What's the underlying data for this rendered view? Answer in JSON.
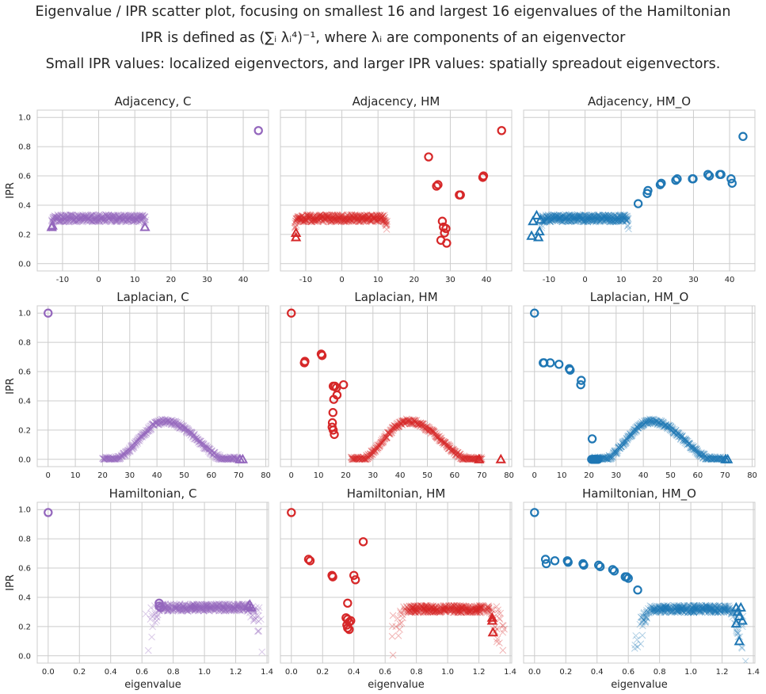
{
  "title_lines": [
    "Eigenvalue / IPR scatter plot, focusing on smallest 16 and largest 16 eigenvalues of the Hamiltonian",
    "IPR is defined as (∑ᵢ λᵢ⁴)⁻¹, where λᵢ are components of an eigenvector",
    "Small IPR values: localized eigenvectors, and larger IPR values: spatially spreadout eigenvectors."
  ],
  "colors": {
    "C": "#9467bd",
    "HM": "#d62728",
    "HM_O": "#1f77b4",
    "grid": "#cccccc",
    "frame": "#cccccc",
    "text": "#262626"
  },
  "chart_data": [
    {
      "id": "adjacency-c",
      "type": "scatter",
      "title": "Adjacency, C",
      "row": "adjacency",
      "color_key": "C",
      "ylabel": "IPR",
      "xlabel": "",
      "xlim": [
        -17,
        47
      ],
      "ylim": [
        -0.05,
        1.05
      ],
      "xticks": [
        -10,
        0,
        10,
        20,
        30,
        40
      ],
      "yticks": [
        0.0,
        0.2,
        0.4,
        0.6,
        0.8,
        1.0
      ],
      "band": {
        "shape": "flat",
        "x": [
          -13,
          13
        ],
        "y": 0.31
      },
      "circles": [
        [
          44.2,
          0.91
        ]
      ],
      "triangles": [
        [
          -13.0,
          0.25
        ],
        [
          -12.8,
          0.26
        ],
        [
          12.8,
          0.25
        ]
      ]
    },
    {
      "id": "adjacency-hm",
      "type": "scatter",
      "title": "Adjacency, HM",
      "row": "adjacency",
      "color_key": "HM",
      "ylabel": "",
      "xlabel": "",
      "xlim": [
        -17,
        47
      ],
      "ylim": [
        -0.05,
        1.05
      ],
      "xticks": [
        -10,
        0,
        10,
        20,
        30,
        40
      ],
      "yticks": [
        0.0,
        0.2,
        0.4,
        0.6,
        0.8,
        1.0
      ],
      "band": {
        "shape": "flat",
        "x": [
          -13,
          12.5
        ],
        "y": 0.31
      },
      "circles": [
        [
          24.0,
          0.73
        ],
        [
          26.2,
          0.53
        ],
        [
          26.6,
          0.54
        ],
        [
          32.5,
          0.47
        ],
        [
          32.8,
          0.47
        ],
        [
          39.0,
          0.59
        ],
        [
          39.2,
          0.6
        ],
        [
          44.2,
          0.91
        ],
        [
          27.8,
          0.29
        ],
        [
          28.1,
          0.25
        ],
        [
          28.4,
          0.21
        ],
        [
          28.8,
          0.24
        ],
        [
          27.4,
          0.16
        ],
        [
          29.0,
          0.14
        ]
      ],
      "triangles": [
        [
          -12.7,
          0.18
        ],
        [
          -12.7,
          0.21
        ]
      ]
    },
    {
      "id": "adjacency-hm-o",
      "type": "scatter",
      "title": "Adjacency, HM_O",
      "row": "adjacency",
      "color_key": "HM_O",
      "ylabel": "",
      "xlabel": "",
      "xlim": [
        -17,
        47
      ],
      "ylim": [
        -0.05,
        1.05
      ],
      "xticks": [
        -10,
        0,
        10,
        20,
        30,
        40
      ],
      "yticks": [
        0.0,
        0.2,
        0.4,
        0.6,
        0.8,
        1.0
      ],
      "band": {
        "shape": "flat",
        "x": [
          -12,
          12
        ],
        "y": 0.31
      },
      "circles": [
        [
          14.7,
          0.41
        ],
        [
          17.2,
          0.48
        ],
        [
          17.4,
          0.5
        ],
        [
          20.8,
          0.54
        ],
        [
          21.1,
          0.55
        ],
        [
          25.1,
          0.57
        ],
        [
          25.5,
          0.58
        ],
        [
          29.7,
          0.58
        ],
        [
          29.9,
          0.58
        ],
        [
          34.0,
          0.61
        ],
        [
          34.4,
          0.6
        ],
        [
          37.3,
          0.61
        ],
        [
          37.6,
          0.61
        ],
        [
          40.4,
          0.58
        ],
        [
          40.7,
          0.55
        ],
        [
          43.7,
          0.87
        ]
      ],
      "triangles": [
        [
          -14.8,
          0.19
        ],
        [
          -14.4,
          0.29
        ],
        [
          -13.4,
          0.33
        ],
        [
          -12.9,
          0.18
        ],
        [
          -12.6,
          0.22
        ],
        [
          -12.3,
          0.3
        ]
      ]
    },
    {
      "id": "laplacian-c",
      "type": "scatter",
      "title": "Laplacian, C",
      "row": "laplacian",
      "color_key": "C",
      "ylabel": "IPR",
      "xlabel": "",
      "xlim": [
        -4,
        81
      ],
      "ylim": [
        -0.05,
        1.05
      ],
      "xticks": [
        0,
        10,
        20,
        30,
        40,
        50,
        60,
        70,
        80
      ],
      "yticks": [
        0.0,
        0.2,
        0.4,
        0.6,
        0.8,
        1.0
      ],
      "band": {
        "shape": "arch",
        "x": [
          20,
          70
        ],
        "ramp": [
          25,
          65
        ],
        "peak": 0.26,
        "peak_x": 43
      },
      "circles": [
        [
          0,
          1.0
        ]
      ],
      "triangles": [
        [
          70.5,
          0.0
        ],
        [
          71.5,
          0.0
        ]
      ]
    },
    {
      "id": "laplacian-hm",
      "type": "scatter",
      "title": "Laplacian, HM",
      "row": "laplacian",
      "color_key": "HM",
      "ylabel": "",
      "xlabel": "",
      "xlim": [
        -4,
        81
      ],
      "ylim": [
        -0.05,
        1.05
      ],
      "xticks": [
        0,
        10,
        20,
        30,
        40,
        50,
        60,
        70,
        80
      ],
      "yticks": [
        0.0,
        0.2,
        0.4,
        0.6,
        0.8,
        1.0
      ],
      "band": {
        "shape": "arch",
        "x": [
          22,
          70
        ],
        "ramp": [
          26,
          65
        ],
        "peak": 0.26,
        "peak_x": 43
      },
      "circles": [
        [
          0,
          1.0
        ],
        [
          4.8,
          0.66
        ],
        [
          5.0,
          0.67
        ],
        [
          11.0,
          0.72
        ],
        [
          11.3,
          0.71
        ],
        [
          15.4,
          0.5
        ],
        [
          16.0,
          0.5
        ],
        [
          16.6,
          0.49
        ],
        [
          16.8,
          0.44
        ],
        [
          15.6,
          0.41
        ],
        [
          19.2,
          0.51
        ],
        [
          15.3,
          0.32
        ],
        [
          15.1,
          0.25
        ],
        [
          15.0,
          0.22
        ],
        [
          15.4,
          0.2
        ],
        [
          15.8,
          0.17
        ]
      ],
      "triangles": [
        [
          69.0,
          0.0
        ],
        [
          77.0,
          0.0
        ]
      ]
    },
    {
      "id": "laplacian-hm-o",
      "type": "scatter",
      "title": "Laplacian, HM_O",
      "row": "laplacian",
      "color_key": "HM_O",
      "ylabel": "",
      "xlabel": "",
      "xlim": [
        -4,
        81
      ],
      "ylim": [
        -0.05,
        1.05
      ],
      "xticks": [
        0,
        10,
        20,
        30,
        40,
        50,
        60,
        70,
        80
      ],
      "yticks": [
        0.0,
        0.2,
        0.4,
        0.6,
        0.8,
        1.0
      ],
      "band": {
        "shape": "arch",
        "x": [
          22,
          70
        ],
        "ramp": [
          26,
          65
        ],
        "peak": 0.26,
        "peak_x": 43
      },
      "circles": [
        [
          0,
          1.0
        ],
        [
          3.2,
          0.66
        ],
        [
          3.5,
          0.66
        ],
        [
          5.8,
          0.66
        ],
        [
          9.0,
          0.65
        ],
        [
          12.8,
          0.62
        ],
        [
          13.1,
          0.61
        ],
        [
          17.2,
          0.54
        ],
        [
          17.0,
          0.51
        ],
        [
          21.2,
          0.14
        ],
        [
          21.0,
          0.0
        ],
        [
          21.6,
          0.0
        ],
        [
          22.1,
          0.0
        ],
        [
          22.5,
          0.0
        ],
        [
          23.0,
          0.0
        ],
        [
          23.4,
          0.0
        ]
      ],
      "triangles": [
        [
          70.2,
          0.0
        ],
        [
          71.0,
          0.0
        ]
      ]
    },
    {
      "id": "hamiltonian-c",
      "type": "scatter",
      "title": "Hamiltonian, C",
      "row": "hamiltonian",
      "color_key": "C",
      "ylabel": "IPR",
      "xlabel": "eigenvalue",
      "xlim": [
        -0.07,
        1.41
      ],
      "ylim": [
        -0.05,
        1.05
      ],
      "xticks": [
        0.0,
        0.2,
        0.4,
        0.6,
        0.8,
        1.0,
        1.2,
        1.4
      ],
      "yticks": [
        0.0,
        0.2,
        0.4,
        0.6,
        0.8,
        1.0
      ],
      "band": {
        "shape": "flat",
        "x": [
          0.7,
          1.3
        ],
        "y": 0.33
      },
      "circles": [
        [
          0,
          0.98
        ],
        [
          0.71,
          0.36
        ],
        [
          0.71,
          0.34
        ],
        [
          0.72,
          0.33
        ]
      ],
      "triangles": [
        [
          1.28,
          0.34
        ],
        [
          1.29,
          0.35
        ],
        [
          1.3,
          0.33
        ]
      ]
    },
    {
      "id": "hamiltonian-hm",
      "type": "scatter",
      "title": "Hamiltonian, HM",
      "row": "hamiltonian",
      "color_key": "HM",
      "ylabel": "",
      "xlabel": "eigenvalue",
      "xlim": [
        -0.07,
        1.41
      ],
      "ylim": [
        -0.05,
        1.05
      ],
      "xticks": [
        0.0,
        0.2,
        0.4,
        0.6,
        0.8,
        1.0,
        1.2,
        1.4
      ],
      "yticks": [
        0.0,
        0.2,
        0.4,
        0.6,
        0.8,
        1.0
      ],
      "band": {
        "shape": "flat",
        "x": [
          0.72,
          1.28
        ],
        "y": 0.32
      },
      "circles": [
        [
          0,
          0.98
        ],
        [
          0.11,
          0.66
        ],
        [
          0.12,
          0.65
        ],
        [
          0.26,
          0.55
        ],
        [
          0.265,
          0.54
        ],
        [
          0.36,
          0.36
        ],
        [
          0.4,
          0.55
        ],
        [
          0.41,
          0.52
        ],
        [
          0.46,
          0.78
        ],
        [
          0.35,
          0.26
        ],
        [
          0.36,
          0.25
        ],
        [
          0.37,
          0.23
        ],
        [
          0.38,
          0.24
        ],
        [
          0.36,
          0.19
        ],
        [
          0.37,
          0.18
        ],
        [
          0.355,
          0.21
        ]
      ],
      "triangles": [
        [
          1.285,
          0.24
        ],
        [
          1.285,
          0.26
        ],
        [
          1.29,
          0.16
        ]
      ]
    },
    {
      "id": "hamiltonian-hm-o",
      "type": "scatter",
      "title": "Hamiltonian, HM_O",
      "row": "hamiltonian",
      "color_key": "HM_O",
      "ylabel": "",
      "xlabel": "eigenvalue",
      "xlim": [
        -0.07,
        1.41
      ],
      "ylim": [
        -0.05,
        1.05
      ],
      "xticks": [
        0.0,
        0.2,
        0.4,
        0.6,
        0.8,
        1.0,
        1.2,
        1.4
      ],
      "yticks": [
        0.0,
        0.2,
        0.4,
        0.6,
        0.8,
        1.0
      ],
      "band": {
        "shape": "flat",
        "x": [
          0.72,
          1.27
        ],
        "y": 0.32
      },
      "circles": [
        [
          0,
          0.98
        ],
        [
          0.07,
          0.66
        ],
        [
          0.075,
          0.63
        ],
        [
          0.13,
          0.65
        ],
        [
          0.21,
          0.65
        ],
        [
          0.215,
          0.64
        ],
        [
          0.31,
          0.63
        ],
        [
          0.315,
          0.62
        ],
        [
          0.41,
          0.62
        ],
        [
          0.42,
          0.61
        ],
        [
          0.5,
          0.59
        ],
        [
          0.51,
          0.58
        ],
        [
          0.59,
          0.54
        ],
        [
          0.6,
          0.53
        ],
        [
          0.58,
          0.54
        ],
        [
          0.66,
          0.45
        ]
      ],
      "triangles": [
        [
          1.29,
          0.33
        ],
        [
          1.3,
          0.3
        ],
        [
          1.31,
          0.27
        ],
        [
          1.31,
          0.1
        ],
        [
          1.32,
          0.33
        ],
        [
          1.33,
          0.24
        ],
        [
          1.29,
          0.22
        ]
      ]
    }
  ]
}
